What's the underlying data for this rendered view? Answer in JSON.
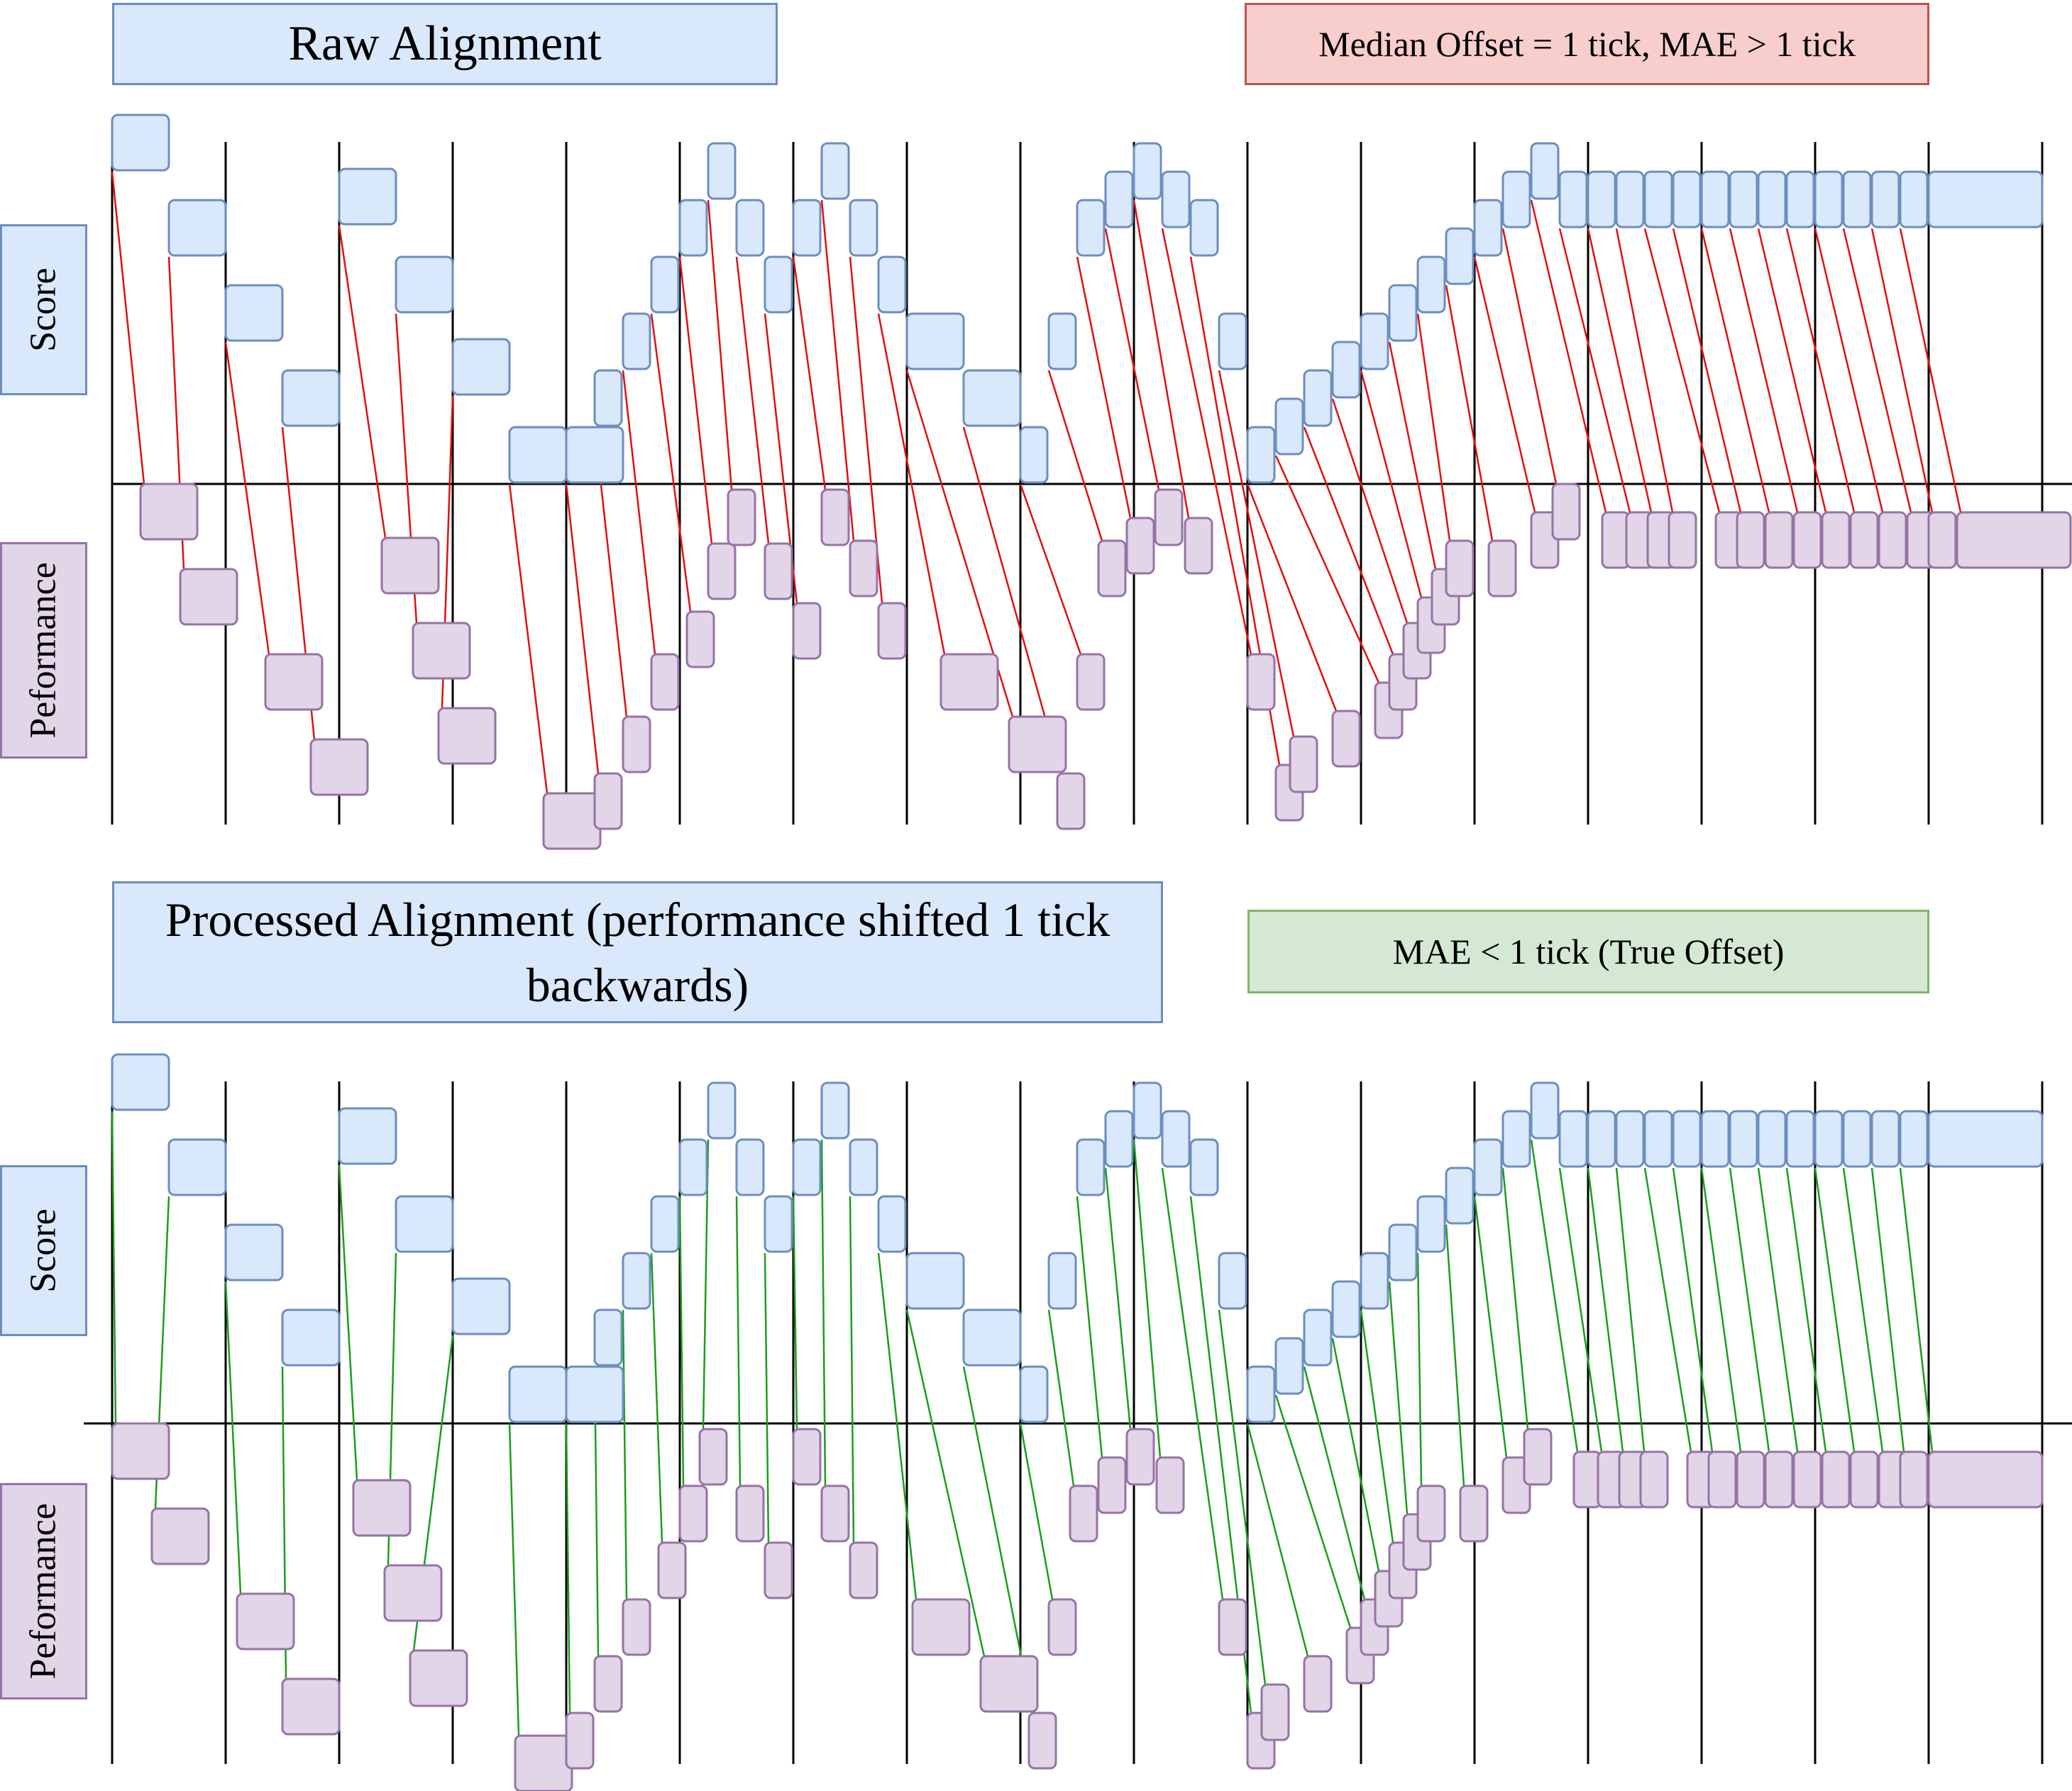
{
  "colors": {
    "score_fill": "#dae8fc",
    "score_stroke": "#6c8ebf",
    "perf_fill": "#e1d5e7",
    "perf_stroke": "#9673a6",
    "raw_line": "#e01010",
    "processed_line": "#1a9e1a",
    "red_fill": "#f8cecc",
    "red_stroke": "#b85450",
    "green_fill": "#d5e8d4",
    "green_stroke": "#82b366"
  },
  "panels": [
    {
      "title": "Raw Alignment",
      "metric": "Median Offset = 1 tick, MAE > 1 tick",
      "metric_style": "red",
      "score_label": "Score",
      "performance_label": "Peformance"
    },
    {
      "title": "Processed Alignment (performance shifted 1 tick backwards)",
      "metric": "MAE < 1 tick (True Offset)",
      "metric_style": "green",
      "score_label": "Score",
      "performance_label": "Peformance"
    }
  ]
}
